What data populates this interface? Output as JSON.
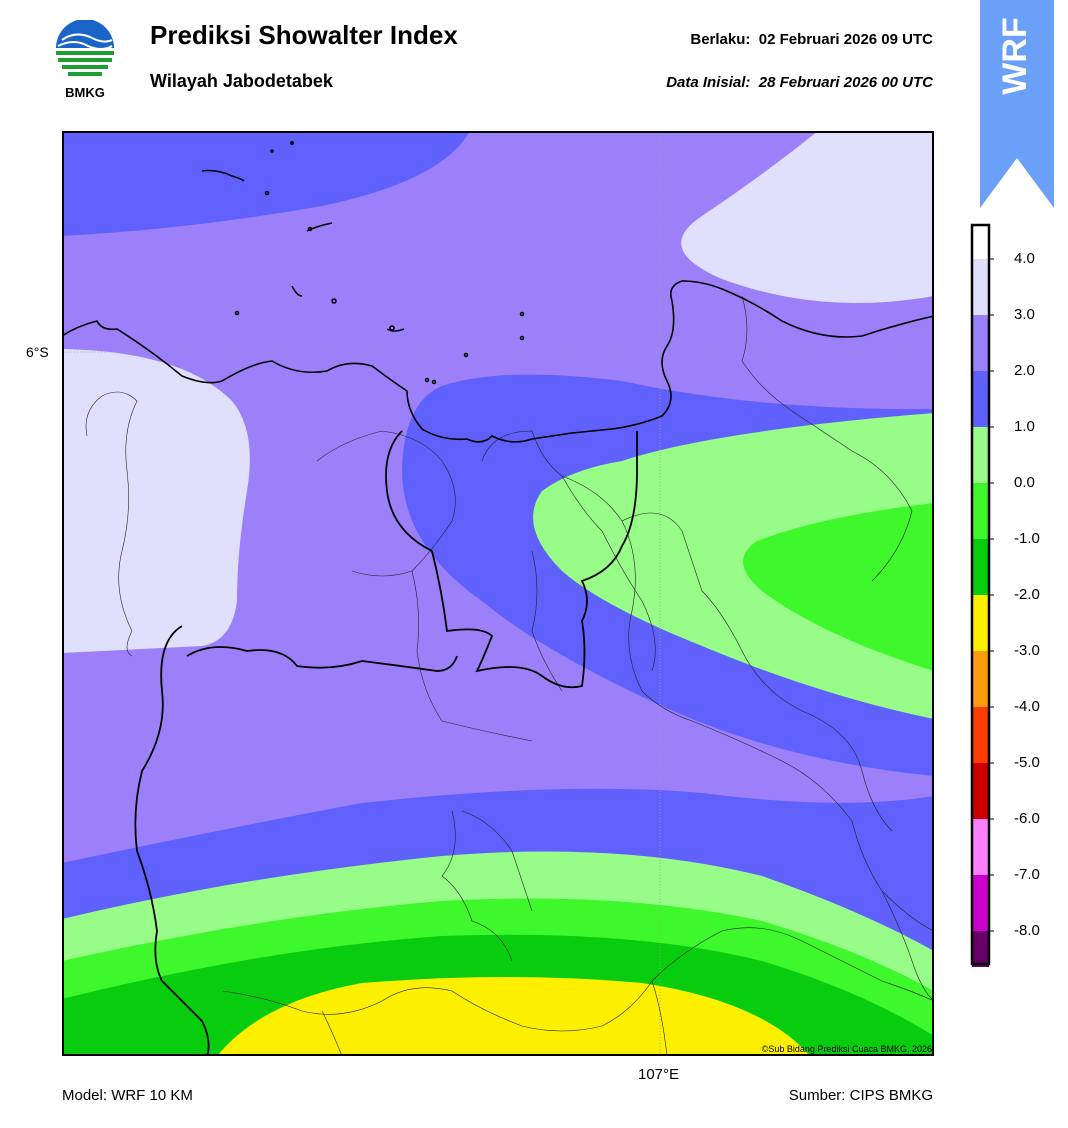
{
  "header": {
    "title": "Prediksi Showalter Index",
    "subtitle": "Wilayah Jabodetabek",
    "valid_label": "Berlaku:",
    "valid_time": "02 Februari 2026 09 UTC",
    "init_label": "Data Inisial:",
    "init_time": "28 Februari 2026 00 UTC"
  },
  "logo": {
    "text": "BMKG",
    "icon": "bmkg-logo"
  },
  "badge": {
    "text": "WRF",
    "color": "#6aa0f8"
  },
  "map": {
    "lat_label": "6°S",
    "lon_label": "107°E",
    "copyright": "©Sub Bidang Prediksi Cuaca BMKG, 2026"
  },
  "footer": {
    "model": "Model: WRF 10 KM",
    "source": "Sumber: CIPS BMKG"
  },
  "colorbar": {
    "labels": [
      "4.0",
      "3.0",
      "2.0",
      "1.0",
      "0.0",
      "-1.0",
      "-2.0",
      "-3.0",
      "-4.0",
      "-5.0",
      "-6.0",
      "-7.0",
      "-8.0"
    ],
    "colors": [
      "#e0e0fc",
      "#9b80fa",
      "#6060fc",
      "#98fc88",
      "#3ef82c",
      "#08cc0e",
      "#fcf000",
      "#fc9c10",
      "#fc3c00",
      "#cc0000",
      "#fc80fc",
      "#cc00cc",
      "#660066"
    ]
  }
}
